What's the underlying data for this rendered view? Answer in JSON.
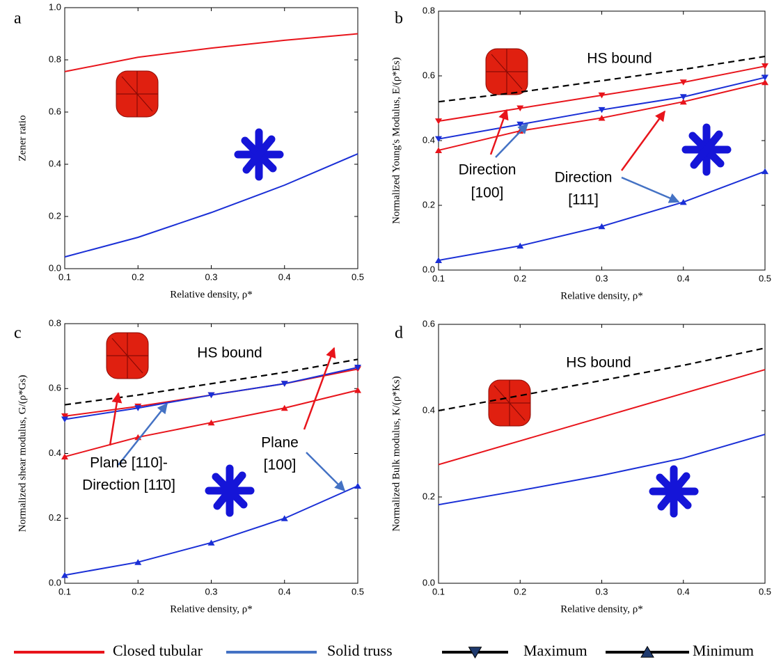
{
  "chart_data": [
    {
      "type": "line",
      "panel_label": "a",
      "ylabel": "Zener ratio",
      "xlabel": "Relative density, ρ*",
      "x": [
        0.1,
        0.2,
        0.3,
        0.4,
        0.5
      ],
      "xlim": [
        0.1,
        0.5
      ],
      "xticks": [
        0.1,
        0.2,
        0.3,
        0.4,
        0.5
      ],
      "ylim": [
        0,
        1
      ],
      "yticks": [
        {
          "value": 0,
          "label": "0.0"
        },
        0.2,
        0.4,
        0.6,
        0.8,
        {
          "value": 1,
          "label": "1.0"
        }
      ],
      "series": [
        {
          "color": "#e8141b",
          "values": [
            0.755,
            0.81,
            0.845,
            0.875,
            0.9
          ]
        },
        {
          "color": "#1a2fd6",
          "values": [
            0.045,
            0.12,
            0.215,
            0.32,
            0.44
          ]
        }
      ],
      "annotations": []
    },
    {
      "type": "line",
      "panel_label": "b",
      "ylabel": "Normalized Young's Modulus, E/(ρ*Es)",
      "xlabel": "Relative density, ρ*",
      "x": [
        0.1,
        0.2,
        0.3,
        0.4,
        0.5
      ],
      "xlim": [
        0.1,
        0.5
      ],
      "xticks": [
        0.1,
        0.2,
        0.3,
        0.4,
        0.5
      ],
      "ylim": [
        0,
        0.8
      ],
      "yticks": [
        {
          "value": 0,
          "label": "0.0"
        },
        0.2,
        0.4,
        0.6,
        0.8
      ],
      "series": [
        {
          "color": "#000000",
          "dash": true,
          "values": [
            0.52,
            0.55,
            0.585,
            0.62,
            0.66
          ]
        },
        {
          "color": "#e8141b",
          "marker": "down",
          "values": [
            0.46,
            0.5,
            0.54,
            0.58,
            0.63
          ]
        },
        {
          "color": "#e8141b",
          "marker": "up",
          "values": [
            0.37,
            0.43,
            0.47,
            0.52,
            0.58
          ]
        },
        {
          "color": "#1a2fd6",
          "marker": "down",
          "values": [
            0.405,
            0.45,
            0.495,
            0.535,
            0.595
          ]
        },
        {
          "color": "#1a2fd6",
          "marker": "up",
          "values": [
            0.03,
            0.075,
            0.135,
            0.21,
            0.305
          ]
        }
      ],
      "annotations": [
        "HS bound",
        "Direction",
        "[100]",
        "Direction",
        "[111]"
      ]
    },
    {
      "type": "line",
      "panel_label": "c",
      "ylabel": "Normalized shear modulus, G/(ρ*Gs)",
      "xlabel": "Relative density, ρ*",
      "x": [
        0.1,
        0.2,
        0.3,
        0.4,
        0.5
      ],
      "xlim": [
        0.1,
        0.5
      ],
      "xticks": [
        0.1,
        0.2,
        0.3,
        0.4,
        0.5
      ],
      "ylim": [
        0,
        0.8
      ],
      "yticks": [
        {
          "value": 0,
          "label": "0.0"
        },
        0.2,
        0.4,
        0.6,
        0.8
      ],
      "series": [
        {
          "color": "#000000",
          "dash": true,
          "values": [
            0.55,
            0.58,
            0.615,
            0.65,
            0.69
          ]
        },
        {
          "color": "#e8141b",
          "marker": "down",
          "values": [
            0.515,
            0.545,
            0.58,
            0.615,
            0.66
          ]
        },
        {
          "color": "#e8141b",
          "marker": "up",
          "values": [
            0.39,
            0.45,
            0.495,
            0.54,
            0.595
          ]
        },
        {
          "color": "#1a2fd6",
          "marker": "down",
          "values": [
            0.505,
            0.54,
            0.58,
            0.615,
            0.665
          ]
        },
        {
          "color": "#1a2fd6",
          "marker": "up",
          "values": [
            0.025,
            0.065,
            0.125,
            0.2,
            0.3
          ]
        }
      ],
      "annotations": [
        "HS bound",
        "Plane [110]-",
        "Direction [11̄0]",
        "Plane",
        "[100]"
      ]
    },
    {
      "type": "line",
      "panel_label": "d",
      "ylabel": "Normalized Bulk modulus, K/(ρ*Ks)",
      "xlabel": "Relative density, ρ*",
      "x": [
        0.1,
        0.2,
        0.3,
        0.4,
        0.5
      ],
      "xlim": [
        0.1,
        0.5
      ],
      "xticks": [
        0.1,
        0.2,
        0.3,
        0.4,
        0.5
      ],
      "ylim": [
        0,
        0.6
      ],
      "yticks": [
        {
          "value": 0,
          "label": "0.0"
        },
        0.2,
        0.4,
        0.6
      ],
      "series": [
        {
          "color": "#000000",
          "dash": true,
          "values": [
            0.4,
            0.435,
            0.47,
            0.505,
            0.545
          ]
        },
        {
          "color": "#e8141b",
          "values": [
            0.275,
            0.33,
            0.385,
            0.44,
            0.495
          ]
        },
        {
          "color": "#1a2fd6",
          "values": [
            0.182,
            0.215,
            0.25,
            0.29,
            0.345
          ]
        }
      ],
      "annotations": [
        "HS bound"
      ]
    }
  ],
  "legend": [
    {
      "label": "Closed tubular",
      "color": "#e8141b"
    },
    {
      "label": "Solid truss",
      "color": "#4472c4"
    },
    {
      "label": "Maximum",
      "color": "#000000",
      "marker": "down"
    },
    {
      "label": "Minimum",
      "color": "#000000",
      "marker": "up"
    }
  ]
}
